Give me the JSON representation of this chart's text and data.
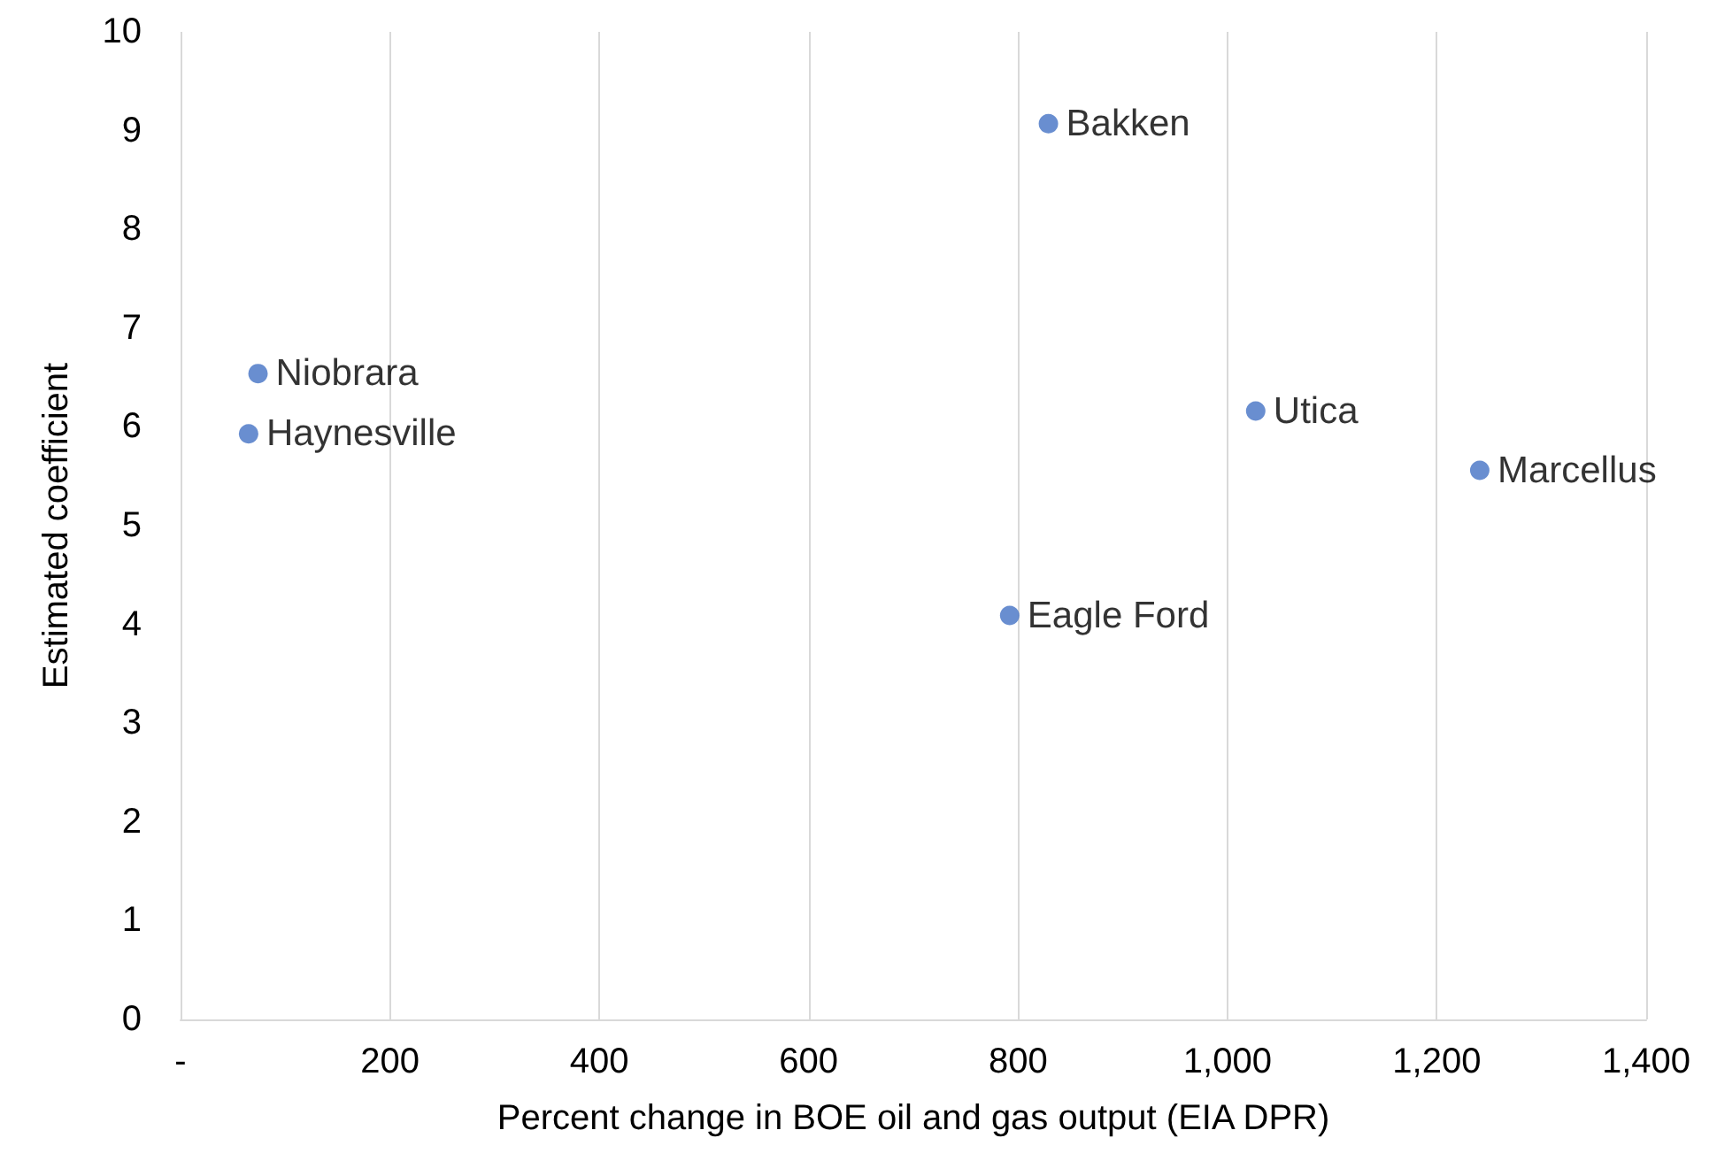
{
  "chart_data": {
    "type": "scatter",
    "xlabel": "Percent change in BOE oil and gas output (EIA DPR)",
    "ylabel": "Estimated coefficient",
    "series": [
      {
        "color": "#4472c4",
        "x": [
          829,
          74,
          65,
          1027,
          1241,
          792
        ],
        "values": [
          9.07,
          6.54,
          5.93,
          6.16,
          5.56,
          4.09
        ]
      }
    ],
    "annotations": [
      {
        "text": "Bakken",
        "x": 829,
        "y": 9.07
      },
      {
        "text": "Niobrara",
        "x": 74,
        "y": 6.54
      },
      {
        "text": "Haynesville",
        "x": 65,
        "y": 5.93
      },
      {
        "text": "Utica",
        "x": 1027,
        "y": 6.16
      },
      {
        "text": "Marcellus",
        "x": 1241,
        "y": 5.56
      },
      {
        "text": "Eagle Ford",
        "x": 792,
        "y": 4.09
      }
    ],
    "xlim": [
      0,
      1400
    ],
    "xticks": [
      {
        "value": 0,
        "label": "-"
      },
      200,
      400,
      600,
      800,
      {
        "value": 1000,
        "label": "1,000"
      },
      {
        "value": 1200,
        "label": "1,200"
      },
      {
        "value": 1400,
        "label": "1,400"
      }
    ],
    "ylim": [
      0,
      10
    ],
    "yticks": [
      0,
      1,
      2,
      3,
      4,
      5,
      6,
      7,
      8,
      9,
      10
    ],
    "grid": "x",
    "marker": "circle"
  }
}
